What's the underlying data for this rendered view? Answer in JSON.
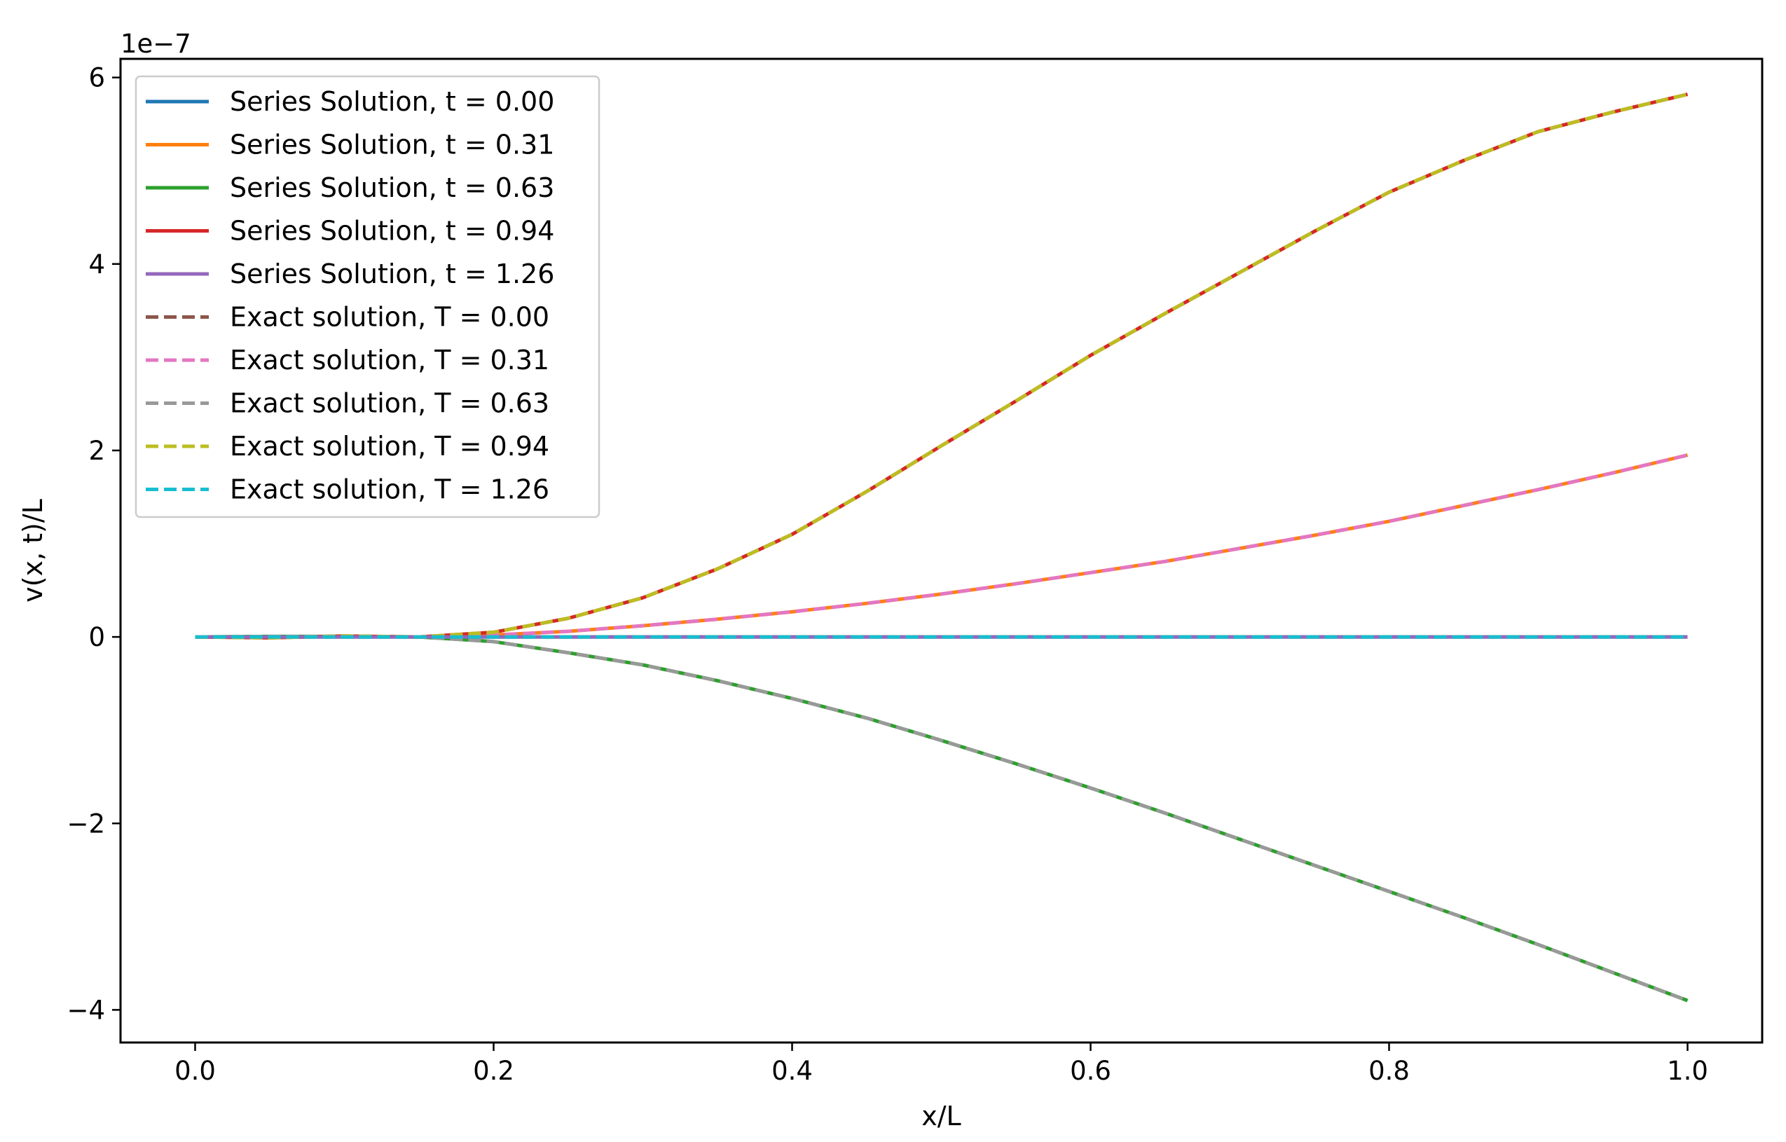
{
  "chart_data": {
    "type": "line",
    "title": "",
    "xlabel": "x/L",
    "ylabel": "v(x, t)/L",
    "offset_label": "1e−7",
    "xlim": [
      -0.05,
      1.05
    ],
    "ylim": [
      -4.35,
      6.2
    ],
    "xticks": [
      0.0,
      0.2,
      0.4,
      0.6,
      0.8,
      1.0
    ],
    "xtick_labels": [
      "0.0",
      "0.2",
      "0.4",
      "0.6",
      "0.8",
      "1.0"
    ],
    "yticks": [
      -4,
      -2,
      0,
      2,
      4,
      6
    ],
    "ytick_labels": [
      "−4",
      "−2",
      "0",
      "2",
      "4",
      "6"
    ],
    "grid": false,
    "legend_position": "upper-left",
    "x": [
      0.0,
      0.05,
      0.1,
      0.15,
      0.2,
      0.25,
      0.3,
      0.35,
      0.4,
      0.45,
      0.5,
      0.55,
      0.6,
      0.65,
      0.7,
      0.75,
      0.8,
      0.85,
      0.9,
      0.95,
      1.0
    ],
    "series": [
      {
        "name": "Series Solution, t = 0.00",
        "color": "#1f77b4",
        "style": "solid",
        "values": [
          0,
          0,
          0,
          0,
          0,
          0,
          0,
          0,
          0,
          0,
          0,
          0,
          0,
          0,
          0,
          0,
          0,
          0,
          0,
          0,
          0
        ]
      },
      {
        "name": "Series Solution, t = 0.31",
        "color": "#ff7f0e",
        "style": "solid",
        "values": [
          0,
          -0.005,
          0.005,
          0.0,
          0.02,
          0.06,
          0.12,
          0.19,
          0.27,
          0.36,
          0.46,
          0.57,
          0.69,
          0.81,
          0.95,
          1.09,
          1.24,
          1.41,
          1.58,
          1.76,
          1.95
        ]
      },
      {
        "name": "Series Solution, t = 0.63",
        "color": "#2ca02c",
        "style": "solid",
        "values": [
          0,
          0.005,
          0.005,
          0.0,
          -0.05,
          -0.17,
          -0.3,
          -0.47,
          -0.66,
          -0.87,
          -1.11,
          -1.36,
          -1.62,
          -1.89,
          -2.17,
          -2.45,
          -2.73,
          -3.01,
          -3.3,
          -3.6,
          -3.9
        ]
      },
      {
        "name": "Series Solution, t = 0.94",
        "color": "#d62728",
        "style": "solid",
        "values": [
          0,
          -0.01,
          0.01,
          0.0,
          0.05,
          0.2,
          0.42,
          0.73,
          1.1,
          1.56,
          2.05,
          2.53,
          3.02,
          3.47,
          3.91,
          4.35,
          4.77,
          5.11,
          5.42,
          5.63,
          5.82
        ]
      },
      {
        "name": "Series Solution, t = 1.26",
        "color": "#9467bd",
        "style": "solid",
        "values": [
          0,
          0,
          0,
          0,
          0,
          0,
          0,
          0,
          0,
          0,
          0,
          0,
          0,
          0,
          0,
          0,
          0,
          0,
          0,
          0,
          0
        ]
      },
      {
        "name": "Exact solution, T = 0.00",
        "color": "#8c564b",
        "style": "dashed",
        "values": [
          0,
          0,
          0,
          0,
          0,
          0,
          0,
          0,
          0,
          0,
          0,
          0,
          0,
          0,
          0,
          0,
          0,
          0,
          0,
          0,
          0
        ]
      },
      {
        "name": "Exact solution, T = 0.31",
        "color": "#e377c2",
        "style": "dashed",
        "values": [
          0,
          -0.005,
          0.005,
          0.0,
          0.02,
          0.06,
          0.12,
          0.19,
          0.27,
          0.36,
          0.46,
          0.57,
          0.69,
          0.81,
          0.95,
          1.09,
          1.24,
          1.41,
          1.58,
          1.76,
          1.95
        ]
      },
      {
        "name": "Exact solution, T = 0.63",
        "color": "#999999",
        "style": "dashed",
        "values": [
          0,
          0.005,
          0.005,
          0.0,
          -0.05,
          -0.17,
          -0.3,
          -0.47,
          -0.66,
          -0.87,
          -1.11,
          -1.36,
          -1.62,
          -1.89,
          -2.17,
          -2.45,
          -2.73,
          -3.01,
          -3.3,
          -3.6,
          -3.9
        ]
      },
      {
        "name": "Exact solution, T = 0.94",
        "color": "#bcbd22",
        "style": "dashed",
        "values": [
          0,
          -0.01,
          0.01,
          0.0,
          0.05,
          0.2,
          0.42,
          0.73,
          1.1,
          1.56,
          2.05,
          2.53,
          3.02,
          3.47,
          3.91,
          4.35,
          4.77,
          5.11,
          5.42,
          5.63,
          5.82
        ]
      },
      {
        "name": "Exact solution, T = 1.26",
        "color": "#17becf",
        "style": "dashed",
        "values": [
          0,
          0,
          0,
          0,
          0,
          0,
          0,
          0,
          0,
          0,
          0,
          0,
          0,
          0,
          0,
          0,
          0,
          0,
          0,
          0,
          0
        ]
      }
    ]
  }
}
